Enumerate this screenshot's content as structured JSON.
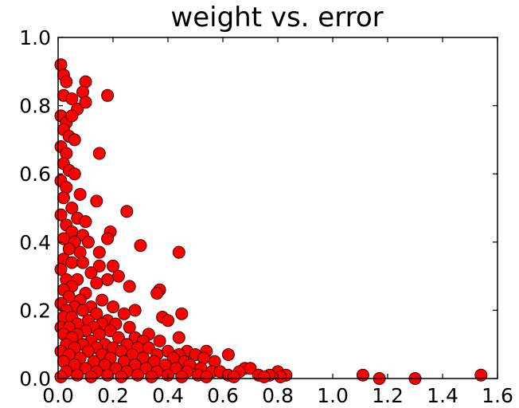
{
  "chart_data": {
    "type": "scatter",
    "title": "weight vs. error",
    "xlabel": "",
    "ylabel": "",
    "xlim": [
      0,
      1.6
    ],
    "ylim": [
      0,
      1.0
    ],
    "x_ticks": [
      "0.0",
      "0.2",
      "0.4",
      "0.6",
      "0.8",
      "1.0",
      "1.2",
      "1.4",
      "1.6"
    ],
    "y_ticks": [
      "0.0",
      "0.2",
      "0.4",
      "0.6",
      "0.8",
      "1.0"
    ],
    "grid": false,
    "marker_color": "#ff0000",
    "marker_edge_color": "#3a0000",
    "series": [
      {
        "points": [
          [
            0.01,
            0.92
          ],
          [
            0.02,
            0.89
          ],
          [
            0.03,
            0.87
          ],
          [
            0.1,
            0.87
          ],
          [
            0.09,
            0.84
          ],
          [
            0.18,
            0.83
          ],
          [
            0.02,
            0.83
          ],
          [
            0.05,
            0.82
          ],
          [
            0.07,
            0.79
          ],
          [
            0.1,
            0.81
          ],
          [
            0.01,
            0.77
          ],
          [
            0.03,
            0.75
          ],
          [
            0.05,
            0.77
          ],
          [
            0.02,
            0.73
          ],
          [
            0.04,
            0.71
          ],
          [
            0.06,
            0.7
          ],
          [
            0.01,
            0.68
          ],
          [
            0.03,
            0.66
          ],
          [
            0.15,
            0.66
          ],
          [
            0.02,
            0.63
          ],
          [
            0.04,
            0.61
          ],
          [
            0.06,
            0.6
          ],
          [
            0.01,
            0.58
          ],
          [
            0.03,
            0.56
          ],
          [
            0.08,
            0.54
          ],
          [
            0.02,
            0.53
          ],
          [
            0.14,
            0.52
          ],
          [
            0.05,
            0.5
          ],
          [
            0.25,
            0.49
          ],
          [
            0.01,
            0.48
          ],
          [
            0.07,
            0.47
          ],
          [
            0.1,
            0.46
          ],
          [
            0.03,
            0.45
          ],
          [
            0.05,
            0.43
          ],
          [
            0.09,
            0.42
          ],
          [
            0.19,
            0.43
          ],
          [
            0.02,
            0.41
          ],
          [
            0.06,
            0.4
          ],
          [
            0.11,
            0.4
          ],
          [
            0.18,
            0.41
          ],
          [
            0.3,
            0.39
          ],
          [
            0.04,
            0.38
          ],
          [
            0.08,
            0.37
          ],
          [
            0.15,
            0.37
          ],
          [
            0.44,
            0.37
          ],
          [
            0.02,
            0.35
          ],
          [
            0.05,
            0.34
          ],
          [
            0.09,
            0.34
          ],
          [
            0.15,
            0.33
          ],
          [
            0.2,
            0.33
          ],
          [
            0.01,
            0.32
          ],
          [
            0.12,
            0.31
          ],
          [
            0.22,
            0.3
          ],
          [
            0.03,
            0.29
          ],
          [
            0.07,
            0.29
          ],
          [
            0.18,
            0.29
          ],
          [
            0.05,
            0.27
          ],
          [
            0.14,
            0.28
          ],
          [
            0.26,
            0.27
          ],
          [
            0.37,
            0.26
          ],
          [
            0.02,
            0.26
          ],
          [
            0.1,
            0.25
          ],
          [
            0.36,
            0.25
          ],
          [
            0.04,
            0.24
          ],
          [
            0.08,
            0.23
          ],
          [
            0.16,
            0.23
          ],
          [
            0.01,
            0.22
          ],
          [
            0.06,
            0.21
          ],
          [
            0.12,
            0.21
          ],
          [
            0.2,
            0.21
          ],
          [
            0.03,
            0.2
          ],
          [
            0.09,
            0.2
          ],
          [
            0.28,
            0.2
          ],
          [
            0.45,
            0.19
          ],
          [
            0.14,
            0.19
          ],
          [
            0.02,
            0.18
          ],
          [
            0.05,
            0.18
          ],
          [
            0.24,
            0.19
          ],
          [
            0.38,
            0.18
          ],
          [
            0.11,
            0.17
          ],
          [
            0.18,
            0.17
          ],
          [
            0.4,
            0.17
          ],
          [
            0.07,
            0.16
          ],
          [
            0.16,
            0.16
          ],
          [
            0.21,
            0.16
          ],
          [
            0.01,
            0.15
          ],
          [
            0.04,
            0.15
          ],
          [
            0.13,
            0.15
          ],
          [
            0.26,
            0.15
          ],
          [
            0.1,
            0.14
          ],
          [
            0.19,
            0.14
          ],
          [
            0.33,
            0.13
          ],
          [
            0.02,
            0.13
          ],
          [
            0.07,
            0.13
          ],
          [
            0.15,
            0.13
          ],
          [
            0.44,
            0.12
          ],
          [
            0.05,
            0.12
          ],
          [
            0.22,
            0.12
          ],
          [
            0.28,
            0.12
          ],
          [
            0.12,
            0.11
          ],
          [
            0.31,
            0.11
          ],
          [
            0.37,
            0.11
          ],
          [
            0.03,
            0.1
          ],
          [
            0.09,
            0.1
          ],
          [
            0.17,
            0.1
          ],
          [
            0.25,
            0.1
          ],
          [
            0.06,
            0.09
          ],
          [
            0.14,
            0.09
          ],
          [
            0.2,
            0.09
          ],
          [
            0.29,
            0.09
          ],
          [
            0.33,
            0.09
          ],
          [
            0.54,
            0.08
          ],
          [
            0.01,
            0.08
          ],
          [
            0.11,
            0.08
          ],
          [
            0.23,
            0.08
          ],
          [
            0.4,
            0.08
          ],
          [
            0.47,
            0.08
          ],
          [
            0.62,
            0.07
          ],
          [
            0.04,
            0.07
          ],
          [
            0.16,
            0.07
          ],
          [
            0.27,
            0.07
          ],
          [
            0.36,
            0.07
          ],
          [
            0.44,
            0.07
          ],
          [
            0.5,
            0.07
          ],
          [
            0.08,
            0.06
          ],
          [
            0.19,
            0.06
          ],
          [
            0.31,
            0.06
          ],
          [
            0.42,
            0.06
          ],
          [
            0.53,
            0.06
          ],
          [
            0.02,
            0.05
          ],
          [
            0.13,
            0.05
          ],
          [
            0.24,
            0.05
          ],
          [
            0.35,
            0.05
          ],
          [
            0.46,
            0.05
          ],
          [
            0.57,
            0.05
          ],
          [
            0.06,
            0.04
          ],
          [
            0.17,
            0.04
          ],
          [
            0.28,
            0.04
          ],
          [
            0.39,
            0.04
          ],
          [
            0.48,
            0.04
          ],
          [
            0.1,
            0.03
          ],
          [
            0.21,
            0.03
          ],
          [
            0.32,
            0.03
          ],
          [
            0.43,
            0.03
          ],
          [
            0.52,
            0.03
          ],
          [
            0.68,
            0.03
          ],
          [
            0.7,
            0.03
          ],
          [
            0.03,
            0.02
          ],
          [
            0.14,
            0.02
          ],
          [
            0.25,
            0.02
          ],
          [
            0.36,
            0.02
          ],
          [
            0.47,
            0.02
          ],
          [
            0.56,
            0.02
          ],
          [
            0.59,
            0.02
          ],
          [
            0.66,
            0.02
          ],
          [
            0.8,
            0.02
          ],
          [
            0.07,
            0.01
          ],
          [
            0.18,
            0.01
          ],
          [
            0.29,
            0.01
          ],
          [
            0.4,
            0.01
          ],
          [
            0.51,
            0.01
          ],
          [
            0.62,
            0.01
          ],
          [
            0.73,
            0.01
          ],
          [
            0.77,
            0.01
          ],
          [
            0.83,
            0.01
          ],
          [
            0.01,
            0.005
          ],
          [
            0.12,
            0.005
          ],
          [
            0.23,
            0.005
          ],
          [
            0.34,
            0.005
          ],
          [
            0.45,
            0.005
          ],
          [
            0.54,
            0.005
          ],
          [
            0.64,
            0.005
          ],
          [
            0.75,
            0.005
          ],
          [
            0.81,
            0.005
          ],
          [
            1.11,
            0.01
          ],
          [
            1.17,
            0.0
          ],
          [
            1.3,
            0.0
          ],
          [
            1.54,
            0.01
          ]
        ]
      }
    ]
  }
}
